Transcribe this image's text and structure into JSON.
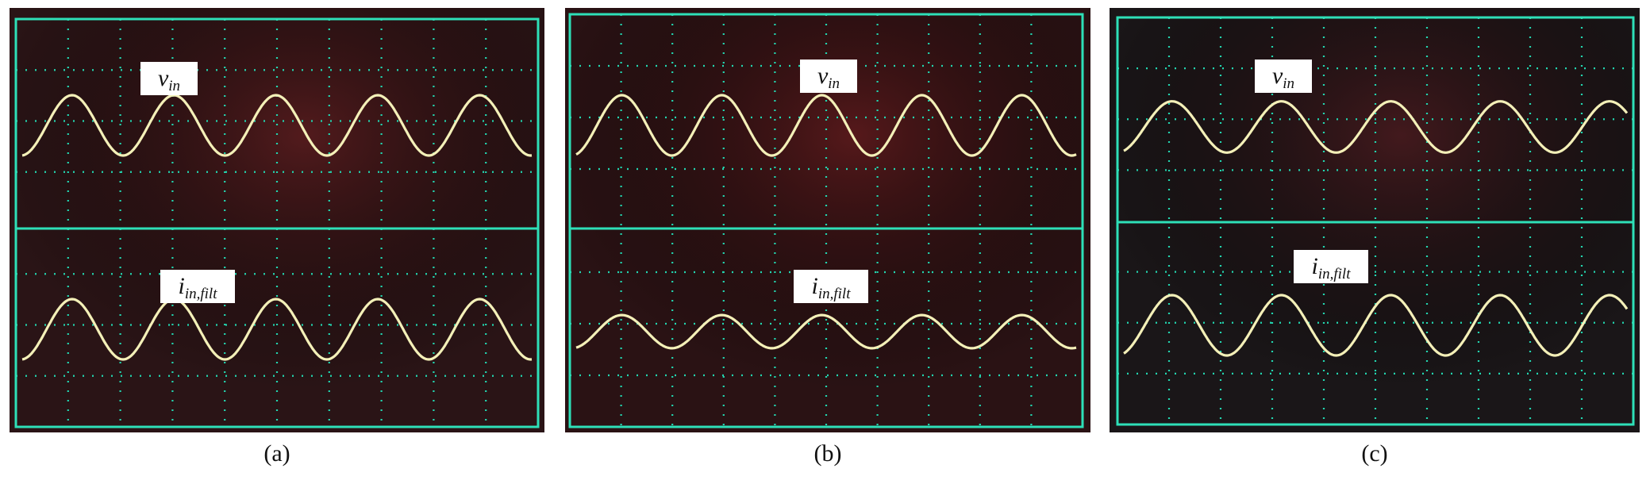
{
  "panels": [
    {
      "caption": "(a)",
      "letter": "a",
      "bg": "#2a1416",
      "tint": "#5a1c1e",
      "top_label": "v",
      "top_sub": "in",
      "bottom_label": "i",
      "bottom_sub": "in,filt"
    },
    {
      "caption": "(b)",
      "letter": "b",
      "bg": "#2a1214",
      "tint": "#5e1a1c",
      "top_label": "v",
      "top_sub": "in",
      "bottom_label": "i",
      "bottom_sub": "in,filt"
    },
    {
      "caption": "(c)",
      "letter": "c",
      "bg": "#1a1618",
      "tint": "#4a1a1e",
      "top_label": "v",
      "top_sub": "in",
      "bottom_label": "i",
      "bottom_sub": "in,filt"
    }
  ],
  "colors": {
    "grid": "#22d6b0",
    "trace": "#f4f0b8",
    "border": "#2ee0b8",
    "label_bg": "#ffffff"
  },
  "chart_data": [
    {
      "type": "line",
      "panel": "a",
      "series": [
        {
          "name": "v_in",
          "trace": "upper",
          "cycles": 5.0,
          "relative_amplitude": 1.0
        },
        {
          "name": "i_in,filt",
          "trace": "lower",
          "cycles": 5.0,
          "relative_amplitude": 1.0
        }
      ],
      "grid": true
    },
    {
      "type": "line",
      "panel": "b",
      "series": [
        {
          "name": "v_in",
          "trace": "upper",
          "cycles": 5.0,
          "relative_amplitude": 1.0
        },
        {
          "name": "i_in,filt",
          "trace": "lower",
          "cycles": 5.0,
          "relative_amplitude": 0.55
        }
      ],
      "grid": true
    },
    {
      "type": "line",
      "panel": "c",
      "series": [
        {
          "name": "v_in",
          "trace": "upper",
          "cycles": 4.6,
          "relative_amplitude": 0.85
        },
        {
          "name": "i_in,filt",
          "trace": "lower",
          "cycles": 4.6,
          "relative_amplitude": 1.0
        }
      ],
      "grid": true
    }
  ]
}
